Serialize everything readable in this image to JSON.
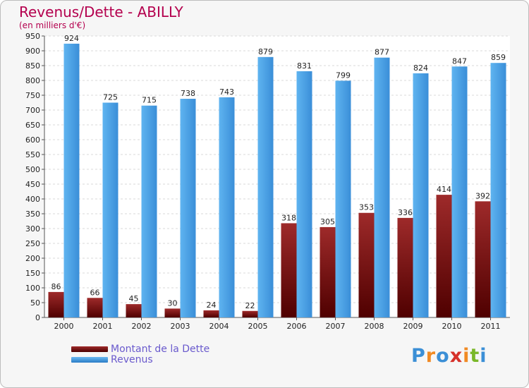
{
  "chart_data": {
    "type": "bar",
    "title": "Revenus/Dette - ABILLY",
    "subtitle": "(en milliers d'€)",
    "categories": [
      "2000",
      "2001",
      "2002",
      "2003",
      "2004",
      "2005",
      "2006",
      "2007",
      "2008",
      "2009",
      "2010",
      "2011"
    ],
    "series": [
      {
        "name": "Montant de la Dette",
        "color": "#7a1a1a",
        "values": [
          86,
          66,
          45,
          30,
          24,
          22,
          318,
          305,
          353,
          336,
          414,
          392
        ]
      },
      {
        "name": "Revenus",
        "color": "#4ba3e8",
        "values": [
          924,
          725,
          715,
          738,
          743,
          879,
          831,
          799,
          877,
          824,
          847,
          859
        ]
      }
    ],
    "ylim": [
      0,
      950
    ],
    "y_ticks": [
      0,
      50,
      100,
      150,
      200,
      250,
      300,
      350,
      400,
      450,
      500,
      550,
      600,
      650,
      700,
      750,
      800,
      850,
      900,
      950
    ],
    "grid": true,
    "legend_position": "bottom-left"
  },
  "logo": {
    "letters": [
      "P",
      "r",
      "o",
      "x",
      "i",
      "t",
      "i"
    ],
    "colors": [
      "#3b8fd6",
      "#f08a24",
      "#3b8fd6",
      "#d6312a",
      "#f08a24",
      "#7ab829",
      "#3b8fd6"
    ]
  }
}
